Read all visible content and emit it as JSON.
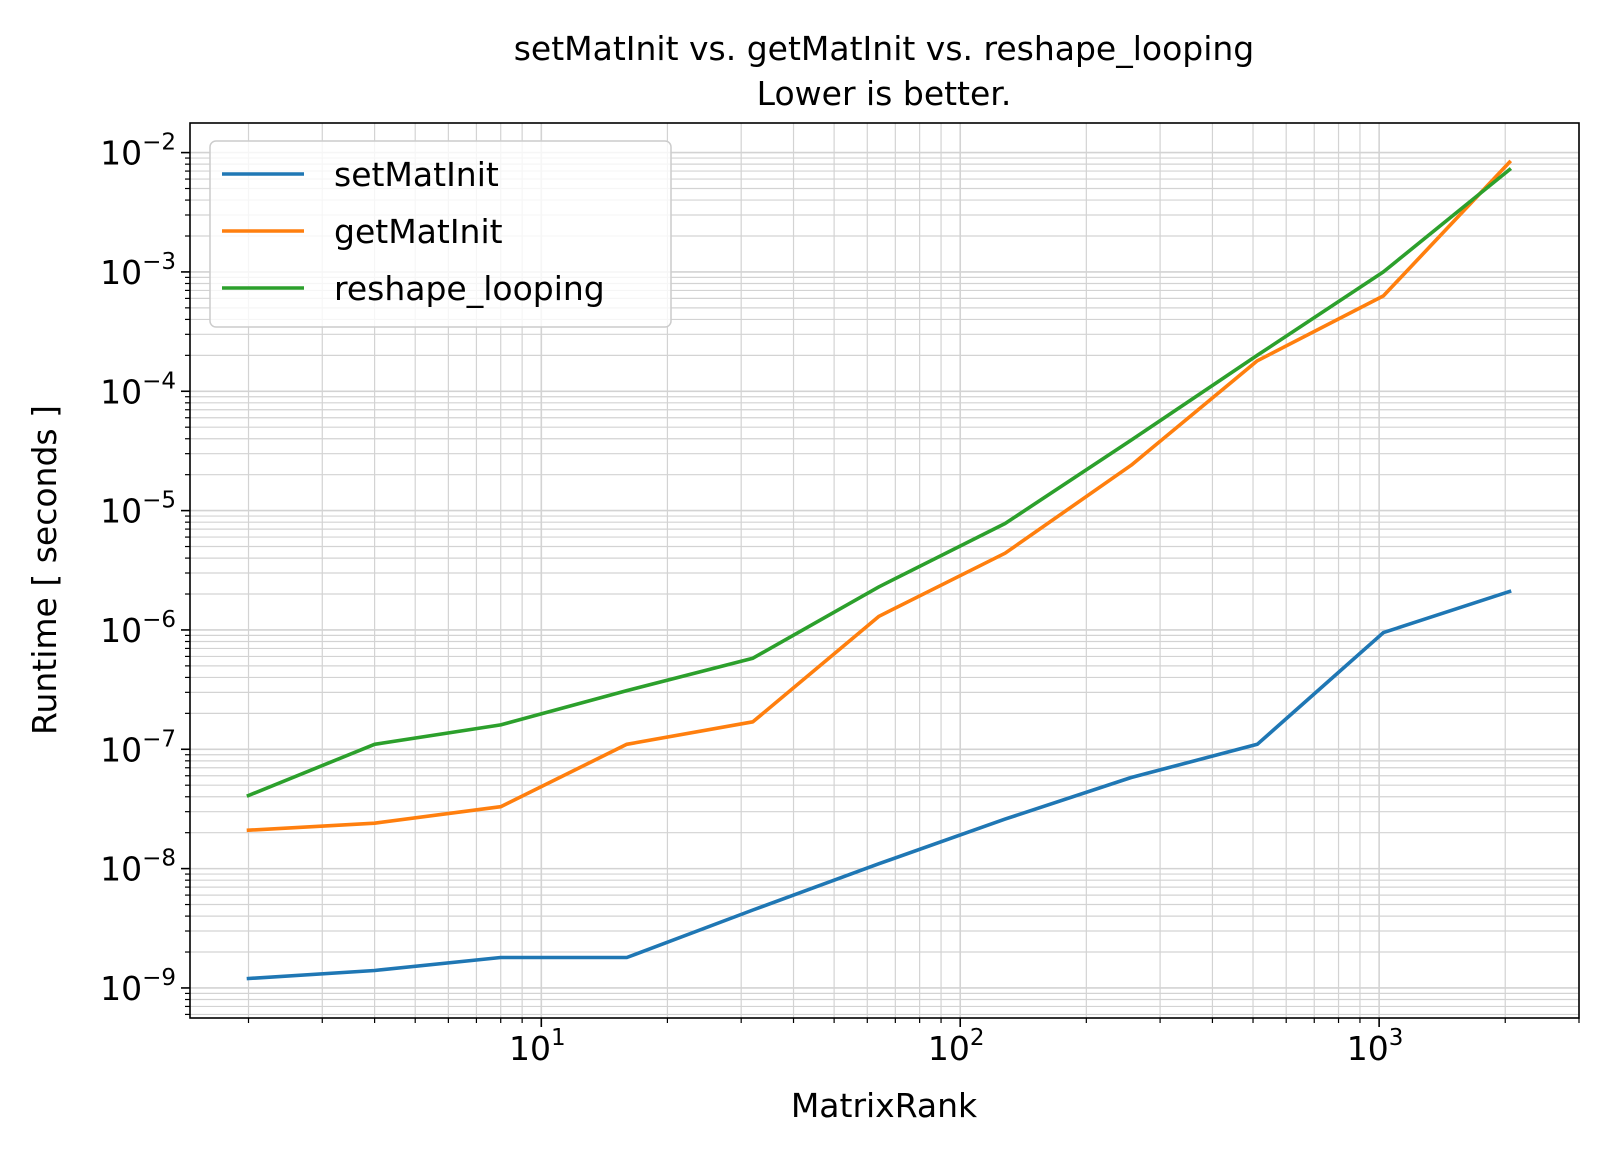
{
  "chart_data": {
    "type": "line",
    "title": "setMatInit vs. getMatInit vs. reshape_looping",
    "subtitle": "Lower is better.",
    "xlabel": "MatrixRank",
    "ylabel": "Runtime [ seconds ]",
    "x_scale": "log",
    "y_scale": "log",
    "xlim": [
      1.45,
      3000
    ],
    "ylim": [
      5.6e-10,
      0.0177
    ],
    "grid": true,
    "legend_position": "upper-left",
    "x": [
      2,
      4,
      8,
      16,
      32,
      64,
      128,
      256,
      512,
      1024,
      2048
    ],
    "x_ticks": [
      {
        "value": 10,
        "label": "10",
        "exp": "1"
      },
      {
        "value": 100,
        "label": "10",
        "exp": "2"
      },
      {
        "value": 1000,
        "label": "10",
        "exp": "3"
      }
    ],
    "y_ticks": [
      {
        "value": 1e-09,
        "label": "10",
        "exp": "−9"
      },
      {
        "value": 1e-08,
        "label": "10",
        "exp": "−8"
      },
      {
        "value": 1e-07,
        "label": "10",
        "exp": "−7"
      },
      {
        "value": 1e-06,
        "label": "10",
        "exp": "−6"
      },
      {
        "value": 1e-05,
        "label": "10",
        "exp": "−5"
      },
      {
        "value": 0.0001,
        "label": "10",
        "exp": "−4"
      },
      {
        "value": 0.001,
        "label": "10",
        "exp": "−3"
      },
      {
        "value": 0.01,
        "label": "10",
        "exp": "−2"
      }
    ],
    "series": [
      {
        "name": "setMatInit",
        "color": "#1f77b4",
        "values": [
          1.2e-09,
          1.4e-09,
          1.8e-09,
          1.8e-09,
          4.5e-09,
          1.1e-08,
          2.6e-08,
          5.8e-08,
          1.1e-07,
          9.5e-07,
          2.1e-06
        ]
      },
      {
        "name": "getMatInit",
        "color": "#ff7f0e",
        "values": [
          2.1e-08,
          2.4e-08,
          3.3e-08,
          1.1e-07,
          1.7e-07,
          1.3e-06,
          4.4e-06,
          2.4e-05,
          0.00018,
          0.00063,
          0.0083
        ]
      },
      {
        "name": "reshape_looping",
        "color": "#2ca02c",
        "values": [
          4.1e-08,
          1.1e-07,
          1.6e-07,
          3.1e-07,
          5.8e-07,
          2.3e-06,
          7.8e-06,
          3.9e-05,
          0.0002,
          0.001,
          0.0072
        ]
      }
    ]
  }
}
